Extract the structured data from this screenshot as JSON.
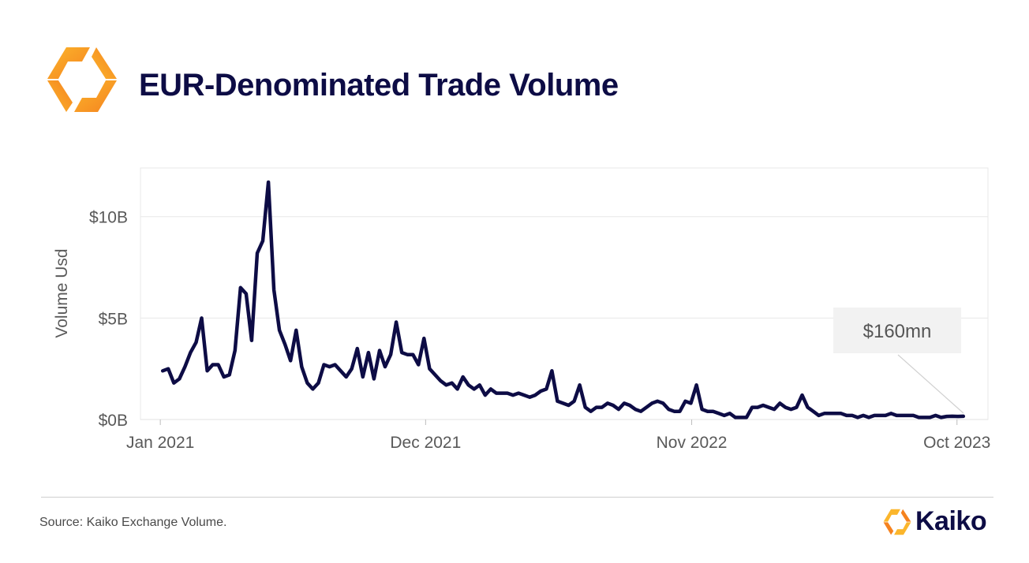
{
  "header": {
    "title": "EUR-Denominated Trade Volume",
    "logo_icon": "kaiko-logo-icon"
  },
  "colors": {
    "line": "#0d0c45",
    "accent_orange": "#f5821f",
    "accent_yellow": "#fbb62c",
    "grid": "#e8e8e8",
    "axis_text": "#595959"
  },
  "chart_data": {
    "type": "line",
    "title": "EUR-Denominated Trade Volume",
    "ylabel": "Volume Usd",
    "xlabel": "",
    "ylim": [
      0,
      12400000000
    ],
    "yticks": [
      0,
      5000000000,
      10000000000
    ],
    "ytick_labels": [
      "$0B",
      "$5B",
      "$10B"
    ],
    "xlim": [
      "2020-12-07",
      "2023-11-09"
    ],
    "xticks": [
      "2021-01-01",
      "2021-12-01",
      "2022-11-01",
      "2023-10-01"
    ],
    "xtick_labels": [
      "Jan 2021",
      "Dec 2021",
      "Nov 2022",
      "Oct 2023"
    ],
    "grid": true,
    "annotation": {
      "text": "$160mn",
      "x": "2023-10-09",
      "y": 160000000
    },
    "series": [
      {
        "x": [
          "2021-01-04",
          "2021-01-11",
          "2021-01-18",
          "2021-01-25",
          "2021-02-01",
          "2021-02-08",
          "2021-02-15",
          "2021-02-22",
          "2021-03-01",
          "2021-03-08",
          "2021-03-15",
          "2021-03-22",
          "2021-03-29",
          "2021-04-05",
          "2021-04-12",
          "2021-04-19",
          "2021-04-26",
          "2021-05-03",
          "2021-05-10",
          "2021-05-17",
          "2021-05-24",
          "2021-05-31",
          "2021-06-07",
          "2021-06-14",
          "2021-06-21",
          "2021-06-28",
          "2021-07-05",
          "2021-07-12",
          "2021-07-19",
          "2021-07-26",
          "2021-08-02",
          "2021-08-09",
          "2021-08-16",
          "2021-08-23",
          "2021-08-30",
          "2021-09-06",
          "2021-09-13",
          "2021-09-20",
          "2021-09-27",
          "2021-10-04",
          "2021-10-11",
          "2021-10-18",
          "2021-10-25",
          "2021-11-01",
          "2021-11-08",
          "2021-11-15",
          "2021-11-22",
          "2021-11-29",
          "2021-12-06",
          "2021-12-13",
          "2021-12-20",
          "2021-12-27",
          "2022-01-03",
          "2022-01-10",
          "2022-01-17",
          "2022-01-24",
          "2022-01-31",
          "2022-02-07",
          "2022-02-14",
          "2022-02-21",
          "2022-02-28",
          "2022-03-07",
          "2022-03-14",
          "2022-03-21",
          "2022-03-28",
          "2022-04-04",
          "2022-04-11",
          "2022-04-18",
          "2022-04-25",
          "2022-05-02",
          "2022-05-09",
          "2022-05-16",
          "2022-05-23",
          "2022-05-30",
          "2022-06-06",
          "2022-06-13",
          "2022-06-20",
          "2022-06-27",
          "2022-07-04",
          "2022-07-11",
          "2022-07-18",
          "2022-07-25",
          "2022-08-01",
          "2022-08-08",
          "2022-08-15",
          "2022-08-22",
          "2022-08-29",
          "2022-09-05",
          "2022-09-12",
          "2022-09-19",
          "2022-09-26",
          "2022-10-03",
          "2022-10-10",
          "2022-10-17",
          "2022-10-24",
          "2022-10-31",
          "2022-11-07",
          "2022-11-14",
          "2022-11-21",
          "2022-11-28",
          "2022-12-05",
          "2022-12-12",
          "2022-12-19",
          "2022-12-26",
          "2023-01-02",
          "2023-01-09",
          "2023-01-16",
          "2023-01-23",
          "2023-01-30",
          "2023-02-06",
          "2023-02-13",
          "2023-02-20",
          "2023-02-27",
          "2023-03-06",
          "2023-03-13",
          "2023-03-20",
          "2023-03-27",
          "2023-04-03",
          "2023-04-10",
          "2023-04-17",
          "2023-04-24",
          "2023-05-01",
          "2023-05-08",
          "2023-05-15",
          "2023-05-22",
          "2023-05-29",
          "2023-06-05",
          "2023-06-12",
          "2023-06-19",
          "2023-06-26",
          "2023-07-03",
          "2023-07-10",
          "2023-07-17",
          "2023-07-24",
          "2023-07-31",
          "2023-08-07",
          "2023-08-14",
          "2023-08-21",
          "2023-08-28",
          "2023-09-04",
          "2023-09-11",
          "2023-09-18",
          "2023-09-25",
          "2023-10-02",
          "2023-10-09"
        ],
        "values": [
          2400000000,
          2500000000,
          1800000000,
          2000000000,
          2600000000,
          3300000000,
          3800000000,
          5000000000,
          2400000000,
          2700000000,
          2700000000,
          2100000000,
          2200000000,
          3400000000,
          6500000000,
          6200000000,
          3900000000,
          8200000000,
          8800000000,
          11700000000,
          6400000000,
          4400000000,
          3700000000,
          2900000000,
          4400000000,
          2600000000,
          1800000000,
          1500000000,
          1800000000,
          2700000000,
          2600000000,
          2700000000,
          2400000000,
          2100000000,
          2500000000,
          3500000000,
          2100000000,
          3300000000,
          2000000000,
          3400000000,
          2600000000,
          3200000000,
          4800000000,
          3300000000,
          3200000000,
          3200000000,
          2700000000,
          4000000000,
          2500000000,
          2200000000,
          1900000000,
          1700000000,
          1800000000,
          1500000000,
          2100000000,
          1700000000,
          1500000000,
          1700000000,
          1200000000,
          1500000000,
          1300000000,
          1300000000,
          1300000000,
          1200000000,
          1300000000,
          1200000000,
          1100000000,
          1200000000,
          1400000000,
          1500000000,
          2400000000,
          900000000,
          800000000,
          700000000,
          900000000,
          1700000000,
          600000000,
          400000000,
          600000000,
          600000000,
          800000000,
          700000000,
          500000000,
          800000000,
          700000000,
          500000000,
          400000000,
          600000000,
          800000000,
          900000000,
          800000000,
          500000000,
          400000000,
          400000000,
          900000000,
          800000000,
          1700000000,
          500000000,
          400000000,
          400000000,
          300000000,
          200000000,
          300000000,
          100000000,
          100000000,
          100000000,
          600000000,
          600000000,
          700000000,
          600000000,
          500000000,
          800000000,
          600000000,
          500000000,
          600000000,
          1200000000,
          600000000,
          400000000,
          200000000,
          300000000,
          300000000,
          300000000,
          300000000,
          200000000,
          200000000,
          100000000,
          200000000,
          100000000,
          200000000,
          200000000,
          200000000,
          300000000,
          200000000,
          200000000,
          200000000,
          200000000,
          100000000,
          100000000,
          100000000,
          200000000,
          100000000,
          150000000,
          160000000,
          150000000,
          160000000
        ]
      }
    ]
  },
  "footer": {
    "source": "Source: Kaiko Exchange Volume.",
    "brand": "Kaiko",
    "brand_icon": "kaiko-logo-icon"
  }
}
